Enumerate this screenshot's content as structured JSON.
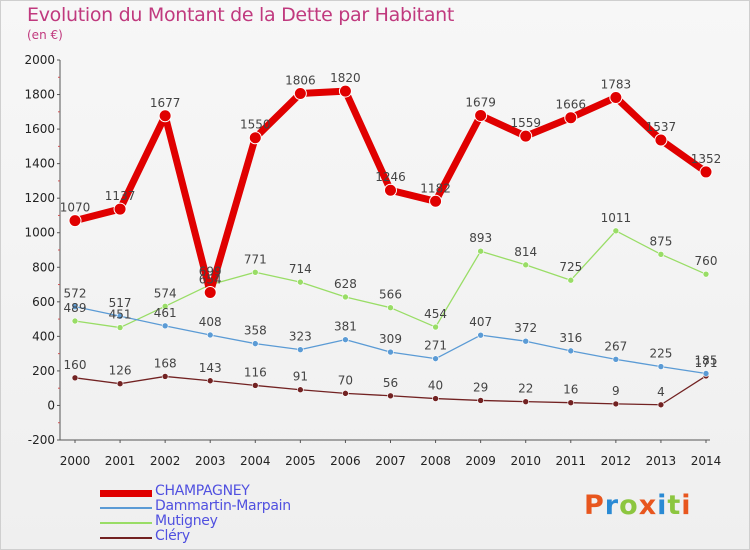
{
  "title": "Evolution du Montant de la Dette par Habitant",
  "subtitle": "(en €)",
  "logo": {
    "text": "Proxiti",
    "letter_colors": [
      "#e8561e",
      "#2a8ad4",
      "#8cc63f",
      "#e8561e",
      "#2a8ad4",
      "#8cc63f",
      "#e8561e"
    ]
  },
  "chart_data": {
    "type": "line",
    "title": "Evolution du Montant de la Dette par Habitant",
    "subtitle": "(en €)",
    "xlabel": "",
    "ylabel": "",
    "ylim": [
      -200,
      2000
    ],
    "yticks": [
      -200,
      0,
      200,
      400,
      600,
      800,
      1000,
      1200,
      1400,
      1600,
      1800,
      2000
    ],
    "grid": false,
    "legend_position": "bottom-left",
    "x": [
      "2000",
      "2001",
      "2002",
      "2003",
      "2004",
      "2005",
      "2006",
      "2007",
      "2008",
      "2009",
      "2010",
      "2011",
      "2012",
      "2013",
      "2014"
    ],
    "series": [
      {
        "name": "CHAMPAGNEY",
        "color": "#e00000",
        "values": [
          1070,
          1137,
          1677,
          654,
          1550,
          1806,
          1820,
          1246,
          1182,
          1679,
          1559,
          1666,
          1783,
          1537,
          1352
        ]
      },
      {
        "name": "Dammartin-Marpain",
        "color": "#5b9bd5",
        "values": [
          572,
          517,
          461,
          408,
          358,
          323,
          381,
          309,
          271,
          407,
          372,
          316,
          267,
          225,
          185
        ]
      },
      {
        "name": "Mutigney",
        "color": "#99dd66",
        "values": [
          489,
          451,
          574,
          699,
          771,
          714,
          628,
          566,
          454,
          893,
          814,
          725,
          1011,
          875,
          760
        ]
      },
      {
        "name": "Cléry",
        "color": "#722222",
        "values": [
          160,
          126,
          168,
          143,
          116,
          91,
          70,
          56,
          40,
          29,
          22,
          16,
          9,
          4,
          171
        ]
      }
    ]
  }
}
